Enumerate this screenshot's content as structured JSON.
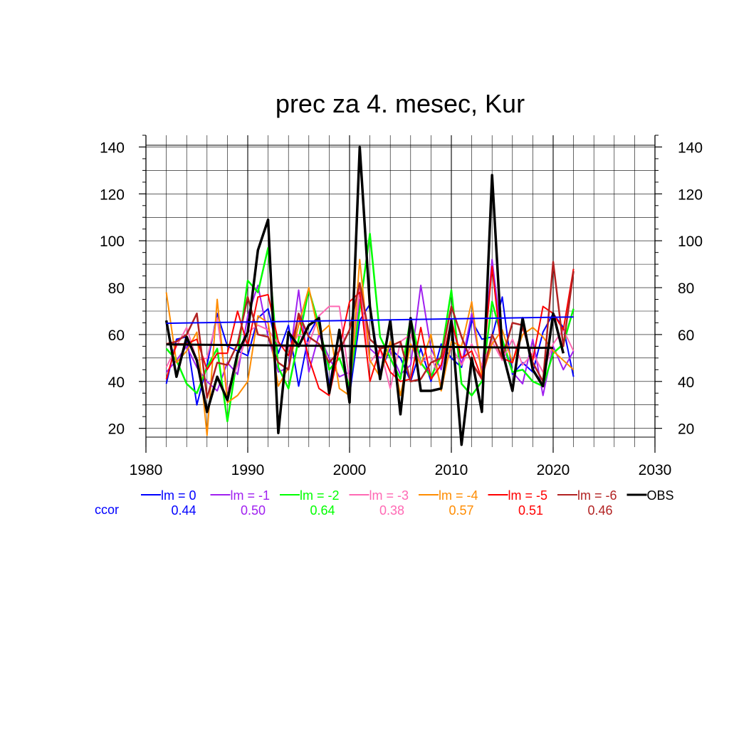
{
  "chart_data": {
    "type": "line",
    "title": "prec za 4. mesec, Kur",
    "xlim": [
      1980,
      2030
    ],
    "ylim": [
      12,
      145
    ],
    "xticks": [
      1980,
      1990,
      2000,
      2010,
      2020,
      2030
    ],
    "yticks": [
      20,
      40,
      60,
      80,
      100,
      120,
      140
    ],
    "grid": true,
    "legend_placement": "bottom",
    "x": [
      1982,
      1983,
      1984,
      1985,
      1986,
      1987,
      1988,
      1989,
      1990,
      1991,
      1992,
      1993,
      1994,
      1995,
      1996,
      1997,
      1998,
      1999,
      2000,
      2001,
      2002,
      2003,
      2004,
      2005,
      2006,
      2007,
      2008,
      2009,
      2010,
      2011,
      2012,
      2013,
      2014,
      2015,
      2016,
      2017,
      2018,
      2019,
      2020,
      2021,
      2022
    ],
    "ccor_label": "ccor",
    "series": [
      {
        "name": "lm = 0",
        "color": "#0000ff",
        "width": 2,
        "ccor": "0.44",
        "values": [
          39,
          58,
          59,
          30,
          47,
          69,
          55,
          53,
          51,
          67,
          71,
          52,
          64,
          38,
          60,
          68,
          38,
          62,
          34,
          66,
          73,
          44,
          54,
          50,
          40,
          54,
          40,
          56,
          50,
          46,
          66,
          58,
          59,
          76,
          43,
          48,
          44,
          61,
          69,
          63,
          42
        ],
        "trend": [
          64.8,
          67.5
        ]
      },
      {
        "name": "lm = -1",
        "color": "#a020f0",
        "width": 2,
        "ccor": "0.50",
        "values": [
          44,
          49,
          55,
          46,
          40,
          36,
          48,
          43,
          68,
          81,
          59,
          44,
          46,
          79,
          44,
          60,
          50,
          42,
          44,
          75,
          54,
          50,
          53,
          43,
          47,
          81,
          54,
          45,
          67,
          47,
          69,
          44,
          92,
          56,
          44,
          39,
          58,
          34,
          55,
          45,
          53
        ]
      },
      {
        "name": "lm = -2",
        "color": "#00ff00",
        "width": 2.5,
        "ccor": "0.64",
        "values": [
          54,
          49,
          39,
          35,
          46,
          54,
          23,
          51,
          83,
          78,
          97,
          46,
          37,
          58,
          79,
          64,
          45,
          50,
          38,
          71,
          103,
          59,
          50,
          41,
          67,
          48,
          42,
          51,
          79,
          39,
          34,
          40,
          74,
          58,
          44,
          45,
          40,
          38,
          52,
          56,
          71
        ]
      },
      {
        "name": "lm = -3",
        "color": "#ff69b4",
        "width": 2,
        "ccor": "0.38",
        "values": [
          46,
          55,
          63,
          49,
          50,
          67,
          36,
          47,
          61,
          64,
          62,
          56,
          54,
          60,
          56,
          68,
          72,
          72,
          40,
          80,
          48,
          54,
          37,
          57,
          60,
          48,
          51,
          39,
          55,
          47,
          56,
          47,
          57,
          49,
          58,
          47,
          52,
          44,
          56,
          62,
          53
        ]
      },
      {
        "name": "lm = -4",
        "color": "#ff8c00",
        "width": 2,
        "ccor": "0.57",
        "values": [
          78,
          48,
          53,
          61,
          17,
          75,
          31,
          34,
          40,
          68,
          65,
          38,
          46,
          64,
          80,
          60,
          64,
          37,
          34,
          92,
          49,
          42,
          57,
          34,
          56,
          47,
          60,
          36,
          57,
          55,
          74,
          42,
          56,
          62,
          48,
          60,
          63,
          59,
          53,
          49,
          45
        ]
      },
      {
        "name": "lm = -5",
        "color": "#ff0000",
        "width": 2,
        "ccor": "0.51",
        "values": [
          41,
          56,
          56,
          58,
          45,
          52,
          52,
          70,
          55,
          76,
          77,
          57,
          51,
          68,
          50,
          37,
          34,
          54,
          74,
          78,
          40,
          54,
          44,
          40,
          41,
          63,
          41,
          47,
          66,
          50,
          53,
          41,
          89,
          50,
          48,
          63,
          49,
          72,
          69,
          62,
          88
        ]
      },
      {
        "name": "lm = -6",
        "color": "#b22222",
        "width": 2.5,
        "ccor": "0.46",
        "values": [
          56,
          57,
          60,
          69,
          33,
          48,
          47,
          56,
          76,
          60,
          59,
          48,
          45,
          69,
          59,
          56,
          48,
          53,
          62,
          82,
          58,
          54,
          55,
          57,
          40,
          41,
          48,
          50,
          72,
          59,
          48,
          41,
          60,
          50,
          65,
          64,
          48,
          40,
          91,
          55,
          87
        ]
      },
      {
        "name": "OBS",
        "color": "#000000",
        "width": 3.5,
        "values": [
          66,
          42,
          59,
          49,
          27,
          42,
          32,
          52,
          61,
          96,
          109,
          18,
          61,
          55,
          64,
          67,
          35,
          62,
          31,
          140,
          72,
          41,
          66,
          26,
          67,
          36,
          36,
          37,
          66,
          13,
          50,
          27,
          128,
          53,
          36,
          67,
          45,
          38,
          69,
          52,
          null
        ],
        "trend": [
          55.8,
          54.3
        ]
      }
    ]
  }
}
